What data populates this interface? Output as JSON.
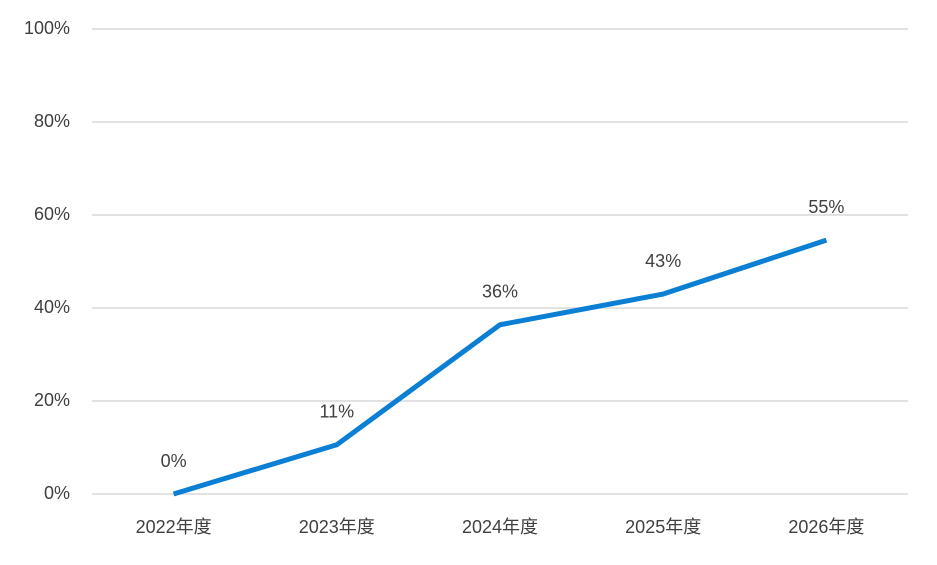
{
  "chart_data": {
    "type": "line",
    "categories": [
      "2022年度",
      "2023年度",
      "2024年度",
      "2025年度",
      "2026年度"
    ],
    "values": [
      0,
      10.6,
      36.4,
      43,
      54.6
    ],
    "value_labels": [
      "0%",
      "11%",
      "36%",
      "43%",
      "55%"
    ],
    "color": "#0a7fd4",
    "ylim": [
      0,
      100
    ],
    "yticks": [
      {
        "value": 0,
        "label": "0%"
      },
      {
        "value": 20,
        "label": "20%"
      },
      {
        "value": 40,
        "label": "40%"
      },
      {
        "value": 60,
        "label": "60%"
      },
      {
        "value": 80,
        "label": "80%"
      },
      {
        "value": 100,
        "label": "100%"
      }
    ],
    "grid": true
  }
}
